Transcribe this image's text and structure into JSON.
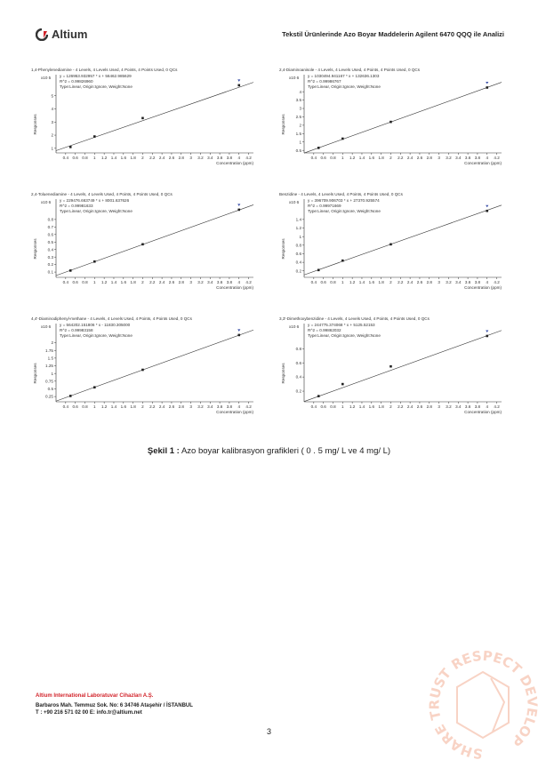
{
  "header": {
    "logo_text": "Altium",
    "document_title": "Tekstil Ürünlerinde Azo Boyar Maddelerin Agilent 6470 QQQ ile Analizi"
  },
  "colors": {
    "brand_red": "#d2232a",
    "line": "#333333",
    "point": "#222222",
    "marker_blue": "#3a4fa8",
    "stamp": "#f0a080"
  },
  "chart_data": [
    {
      "type": "scatter",
      "title": "1,4-Phenylenediamine - 4 Levels, 4 Levels Used, 4 Points, 4 Points Used, 0 QCs",
      "equation": "y = 126953.932957 * x + 56462.985629",
      "r2": "R^2 = 0.99826960",
      "fit_info": "Type:Linear, Origin:Ignore, Weight:None",
      "scale_label": "x10 5",
      "scale_power": 5,
      "slope": 126953.932957,
      "intercept": 56462.985629,
      "ylabel": "Responses",
      "xlabel": "Concentration (ppm)",
      "xlim": [
        0.2,
        4.3
      ],
      "ylim": [
        0.65,
        6.2
      ],
      "yticks": [
        1,
        2,
        3,
        4,
        5
      ],
      "xticks": [
        0.4,
        0.6,
        0.8,
        1,
        1.2,
        1.4,
        1.6,
        1.8,
        2,
        2.2,
        2.4,
        2.6,
        2.8,
        3,
        3.2,
        3.4,
        3.6,
        3.8,
        4,
        4.2
      ],
      "x": [
        0.5,
        1,
        2,
        4
      ],
      "y": [
        1.1,
        1.9,
        3.3,
        5.8
      ]
    },
    {
      "type": "scatter",
      "title": "2,4-Diaminoanisole - 4 Levels, 4 Levels Used, 4 Points, 4 Points Used, 0 QCs",
      "equation": "y = 1030494.941167 * x + 132636.1303",
      "r2": "R^2 = 0.99986767",
      "fit_info": "Type:Linear, Origin:Ignore, Weight:None",
      "scale_label": "x10 6",
      "scale_power": 6,
      "slope": 1030494.941167,
      "intercept": 132636.1303,
      "ylabel": "Responses",
      "xlabel": "Concentration (ppm)",
      "xlim": [
        0.2,
        4.3
      ],
      "ylim": [
        0.35,
        4.7
      ],
      "yticks": [
        0.5,
        1,
        1.5,
        2,
        2.5,
        3,
        3.5,
        4
      ],
      "xticks": [
        0.4,
        0.6,
        0.8,
        1,
        1.2,
        1.4,
        1.6,
        1.8,
        2,
        2.2,
        2.4,
        2.6,
        2.8,
        3,
        3.2,
        3.4,
        3.6,
        3.8,
        4,
        4.2
      ],
      "x": [
        0.5,
        1,
        2,
        4
      ],
      "y": [
        0.65,
        1.2,
        2.2,
        4.25
      ]
    },
    {
      "type": "scatter",
      "title": "2,4-Toluenediamine - 4 Levels, 4 Levels Used, 4 Points, 4 Points Used, 0 QCs",
      "equation": "y = 229476.663749 * x + 8001.637626",
      "r2": "R^2 = 0.99981633",
      "fit_info": "Type:Linear, Origin:Ignore, Weight:None",
      "scale_label": "x10 6",
      "scale_power": 6,
      "slope": 229476.663749,
      "intercept": 8001.637626,
      "ylabel": "Responses",
      "xlabel": "Concentration (ppm)",
      "xlim": [
        0.2,
        4.3
      ],
      "ylim": [
        0.03,
        1.0
      ],
      "yticks": [
        0.1,
        0.2,
        0.3,
        0.4,
        0.5,
        0.6,
        0.7,
        0.8
      ],
      "xticks": [
        0.4,
        0.6,
        0.8,
        1,
        1.2,
        1.4,
        1.6,
        1.8,
        2,
        2.2,
        2.4,
        2.6,
        2.8,
        3,
        3.2,
        3.4,
        3.6,
        3.8,
        4,
        4.2
      ],
      "x": [
        0.5,
        1,
        2,
        4
      ],
      "y": [
        0.12,
        0.24,
        0.47,
        0.93
      ]
    },
    {
      "type": "scatter",
      "title": "Benzidine - 4 Levels, 4 Levels Used, 4 Points, 4 Points Used, 0 QCs",
      "equation": "y = 396709.906703 * x + 27370.925574",
      "r2": "R^2 = 0.99971669",
      "fit_info": "Type:Linear, Origin:Ignore, Weight:None",
      "scale_label": "x10 6",
      "scale_power": 6,
      "slope": 396709.906703,
      "intercept": 27370.925574,
      "ylabel": "Responses",
      "xlabel": "Concentration (ppm)",
      "xlim": [
        0.2,
        4.3
      ],
      "ylim": [
        0.05,
        1.75
      ],
      "yticks": [
        0.2,
        0.4,
        0.6,
        0.8,
        1,
        1.2,
        1.4
      ],
      "xticks": [
        0.4,
        0.6,
        0.8,
        1,
        1.2,
        1.4,
        1.6,
        1.8,
        2,
        2.2,
        2.4,
        2.6,
        2.8,
        3,
        3.2,
        3.4,
        3.6,
        3.8,
        4,
        4.2
      ],
      "x": [
        0.5,
        1,
        2,
        4
      ],
      "y": [
        0.22,
        0.44,
        0.82,
        1.6
      ]
    },
    {
      "type": "scatter",
      "title": "4,4'-Diaminodiphenyl-methane - 4 Levels, 4 Levels Used, 4 Points, 4 Points Used, 0 QCs",
      "equation": "y = 564202.151806 * x - 11830.305000",
      "r2": "R^2 = 0.99983158",
      "fit_info": "Type:Linear, Origin:Ignore, Weight:None",
      "scale_label": "x10 6",
      "scale_power": 6,
      "slope": 564202.151806,
      "intercept": -11830.305,
      "ylabel": "Responses",
      "xlabel": "Concentration (ppm)",
      "xlim": [
        0.2,
        4.3
      ],
      "ylim": [
        0.08,
        2.45
      ],
      "yticks": [
        0.25,
        0.5,
        0.75,
        1,
        1.25,
        1.5,
        1.75,
        2
      ],
      "xticks": [
        0.4,
        0.6,
        0.8,
        1,
        1.2,
        1.4,
        1.6,
        1.8,
        2,
        2.2,
        2.4,
        2.6,
        2.8,
        3,
        3.2,
        3.4,
        3.6,
        3.8,
        4,
        4.2
      ],
      "x": [
        0.5,
        1,
        2,
        4
      ],
      "y": [
        0.27,
        0.55,
        1.12,
        2.25
      ]
    },
    {
      "type": "scatter",
      "title": "3,3'-Dimethoxybenzidine - 4 Levels, 4 Levels Used, 4 Points, 4 Points Used, 0 QCs",
      "equation": "y = 244775.374068 * x + 5125.52153",
      "r2": "R^2 = 0.99862032",
      "fit_info": "Type:Linear, Origin:Ignore, Weight:None",
      "scale_label": "x10 6",
      "scale_power": 6,
      "slope": 244775.374068,
      "intercept": 5125.52153,
      "ylabel": "Responses",
      "xlabel": "Concentration (ppm)",
      "xlim": [
        0.2,
        4.3
      ],
      "ylim": [
        0.05,
        1.08
      ],
      "yticks": [
        0.2,
        0.4,
        0.6,
        0.8
      ],
      "xticks": [
        0.4,
        0.6,
        0.8,
        1,
        1.2,
        1.4,
        1.6,
        1.8,
        2,
        2.2,
        2.4,
        2.6,
        2.8,
        3,
        3.2,
        3.4,
        3.6,
        3.8,
        4,
        4.2
      ],
      "x": [
        0.5,
        1,
        2,
        4
      ],
      "y": [
        0.13,
        0.3,
        0.55,
        0.98
      ]
    }
  ],
  "caption": {
    "label": "Şekil 1 :",
    "text": " Azo boyar kalibrasyon grafikleri ( 0 . 5 mg/ L ve 4 mg/ L)"
  },
  "footer": {
    "company": "Altium International Laboratuvar Cihazları A.Ş.",
    "address": "Barbaros Mah. Temmuz Sok. No: 6  34746 Ataşehir / İSTANBUL",
    "contact": "T : +90 216 571 02 00  E: info.tr@altium.net"
  },
  "page_number": "3",
  "stamp": {
    "text": "SHARE TRUST RESPECT DEVELOP"
  }
}
